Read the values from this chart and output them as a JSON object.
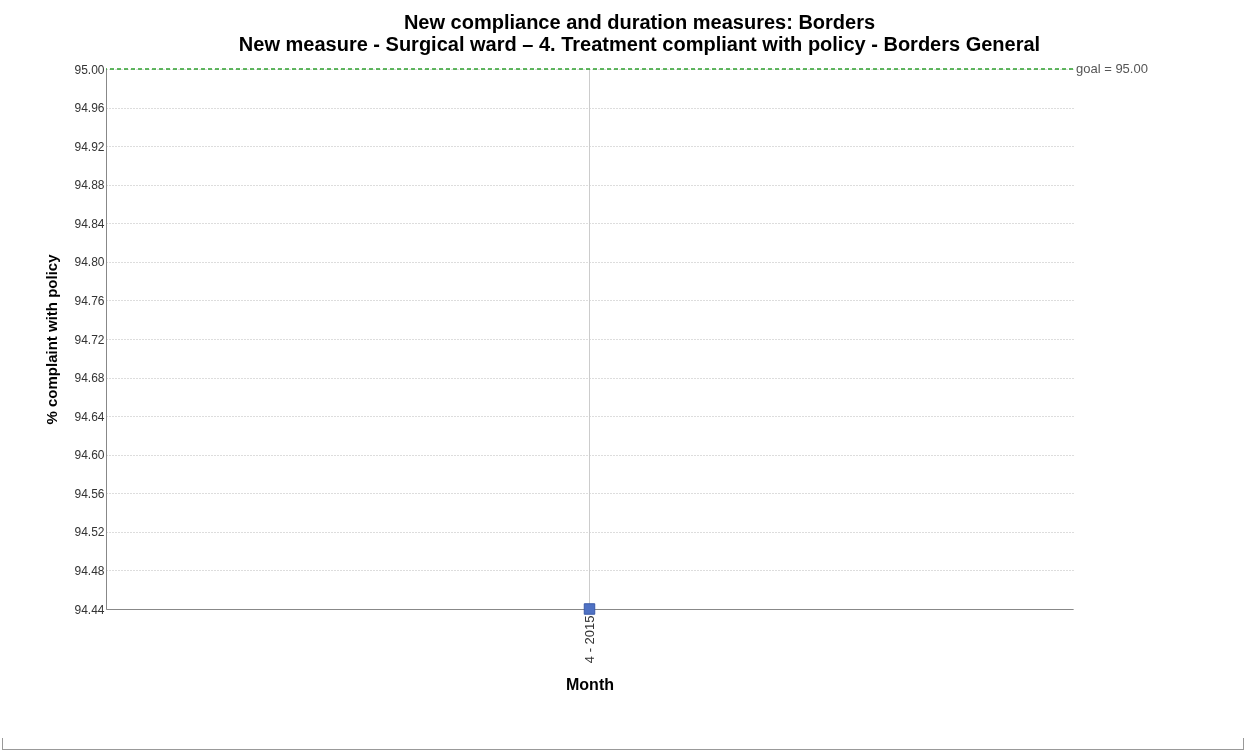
{
  "chart_data": {
    "type": "line",
    "title": "New compliance and duration measures:  Borders",
    "subtitle": "New measure - Surgical ward – 4. Treatment compliant with policy - Borders General",
    "xlabel": "Month",
    "ylabel": "% complaint with policy",
    "categories": [
      "4 - 2015"
    ],
    "series": [
      {
        "color": "#4f72c4",
        "values": [
          94.44
        ]
      }
    ],
    "ylim": [
      94.44,
      95.0
    ],
    "yticks": [
      {
        "value": 94.44,
        "label": "94.44"
      },
      {
        "value": 94.48,
        "label": "94.48"
      },
      {
        "value": 94.52,
        "label": "94.52"
      },
      {
        "value": 94.56,
        "label": "94.56"
      },
      {
        "value": 94.6,
        "label": "94.60"
      },
      {
        "value": 94.64,
        "label": "94.64"
      },
      {
        "value": 94.68,
        "label": "94.68"
      },
      {
        "value": 94.72,
        "label": "94.72"
      },
      {
        "value": 94.76,
        "label": "94.76"
      },
      {
        "value": 94.8,
        "label": "94.80"
      },
      {
        "value": 94.84,
        "label": "94.84"
      },
      {
        "value": 94.88,
        "label": "94.88"
      },
      {
        "value": 94.92,
        "label": "94.92"
      },
      {
        "value": 94.96,
        "label": "94.96"
      },
      {
        "value": 95.0,
        "label": "95.00"
      }
    ],
    "ref_lines": [
      {
        "axis": "y",
        "value": 95.0,
        "label": "goal = 95.00",
        "color": "#2ca02c",
        "line_style": "dashed"
      },
      {
        "axis": "x",
        "value": "4 - 2015",
        "color": "#cccccc",
        "line_style": "solid"
      }
    ],
    "grid": "y",
    "marker": "square"
  }
}
